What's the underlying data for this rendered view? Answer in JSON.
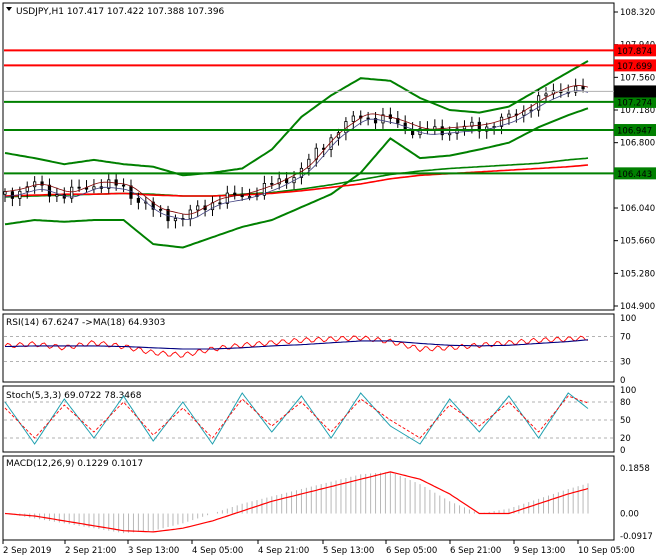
{
  "chart_data": [
    {
      "type": "line",
      "panel": "price",
      "header": "USDJPY,H1  107.417 107.422 107.388 107.396",
      "ylim": [
        104.9,
        108.32
      ],
      "y_ticks": [
        "108.320",
        "107.940",
        "107.560",
        "107.180",
        "106.800",
        "106.420",
        "106.040",
        "105.660",
        "105.280",
        "104.900"
      ],
      "x_labels": [
        "2 Sep 2019",
        "2 Sep 21:00",
        "3 Sep 13:00",
        "4 Sep 05:00",
        "4 Sep 21:00",
        "5 Sep 13:00",
        "6 Sep 05:00",
        "6 Sep 21:00",
        "9 Sep 13:00",
        "10 Sep 05:00"
      ],
      "current_price": {
        "value": 107.396,
        "label": "107.396"
      },
      "levels": [
        {
          "value": 107.874,
          "label": "107.874",
          "color": "#ff0000"
        },
        {
          "value": 107.699,
          "label": "107.699",
          "color": "#ff0000"
        },
        {
          "value": 107.274,
          "label": "107.274",
          "color": "#008000"
        },
        {
          "value": 106.947,
          "label": "106.947",
          "color": "#008000"
        },
        {
          "value": 106.443,
          "label": "106.443",
          "color": "#008000"
        }
      ],
      "price_series": {
        "x_index": [
          0,
          12,
          24,
          36,
          48,
          60,
          72,
          84,
          96,
          108,
          120,
          132,
          144,
          156,
          168,
          180,
          192,
          204,
          216,
          228,
          236
        ],
        "close": [
          106.2,
          106.3,
          106.18,
          106.32,
          106.28,
          106.0,
          105.92,
          106.12,
          106.18,
          106.3,
          106.48,
          106.88,
          107.12,
          107.05,
          106.92,
          106.95,
          106.98,
          107.08,
          107.3,
          107.45,
          107.396
        ]
      },
      "bollinger": {
        "upper": [
          106.68,
          106.62,
          106.55,
          106.6,
          106.55,
          106.52,
          106.42,
          106.45,
          106.5,
          106.72,
          107.1,
          107.35,
          107.55,
          107.52,
          107.32,
          107.18,
          107.15,
          107.22,
          107.42,
          107.62,
          107.75
        ],
        "lower": [
          105.85,
          105.9,
          105.88,
          105.9,
          105.9,
          105.62,
          105.58,
          105.7,
          105.82,
          105.9,
          106.05,
          106.2,
          106.45,
          106.85,
          106.62,
          106.65,
          106.72,
          106.8,
          106.98,
          107.12,
          107.2
        ]
      },
      "ma_long": {
        "color": "#ff0000",
        "values": [
          106.18,
          106.19,
          106.2,
          106.2,
          106.21,
          106.19,
          106.18,
          106.18,
          106.19,
          106.21,
          106.24,
          106.28,
          106.32,
          106.38,
          106.42,
          106.44,
          106.46,
          106.48,
          106.5,
          106.52,
          106.54
        ]
      },
      "ma_mid": {
        "color": "#008000",
        "values": [
          106.17,
          106.18,
          106.19,
          106.2,
          106.21,
          106.2,
          106.18,
          106.18,
          106.2,
          106.22,
          106.26,
          106.31,
          106.37,
          106.43,
          106.47,
          106.5,
          106.52,
          106.54,
          106.56,
          106.6,
          106.62
        ]
      }
    },
    {
      "type": "line",
      "panel": "rsi",
      "header": "RSI(14) 67.6247  ->MA(18) 64.9303",
      "ylim": [
        0,
        100
      ],
      "y_ticks": [
        "100",
        "70",
        "30",
        "0"
      ],
      "rsi": [
        55,
        58,
        52,
        60,
        54,
        44,
        40,
        50,
        56,
        60,
        64,
        66,
        68,
        62,
        50,
        52,
        56,
        60,
        64,
        66,
        67.6
      ],
      "ma": [
        54,
        55,
        55,
        55,
        54,
        52,
        50,
        50,
        52,
        55,
        57,
        60,
        63,
        63,
        59,
        56,
        55,
        56,
        59,
        62,
        64.9
      ]
    },
    {
      "type": "line",
      "panel": "stoch",
      "header": "Stoch(5,3,3) 69.0722 78.3468",
      "ylim": [
        0,
        100
      ],
      "y_ticks": [
        "100",
        "80",
        "50",
        "20",
        "0"
      ],
      "k": [
        80,
        10,
        85,
        20,
        90,
        15,
        80,
        10,
        95,
        30,
        90,
        20,
        95,
        40,
        10,
        85,
        30,
        90,
        20,
        95,
        69.1
      ],
      "d": [
        70,
        20,
        75,
        30,
        80,
        25,
        70,
        20,
        85,
        40,
        80,
        30,
        85,
        50,
        20,
        75,
        40,
        80,
        30,
        90,
        78.3
      ]
    },
    {
      "type": "bar",
      "panel": "macd",
      "header": "MACD(12,26,9) 0.1229 0.1017",
      "ylim": [
        -0.0917,
        0.1858
      ],
      "y_ticks": [
        "0.1858",
        "0.00",
        "-0.0917"
      ],
      "histogram": [
        0.0,
        -0.02,
        -0.04,
        -0.06,
        -0.08,
        -0.07,
        -0.04,
        0.0,
        0.04,
        0.07,
        0.1,
        0.13,
        0.16,
        0.17,
        0.12,
        0.05,
        0.0,
        0.02,
        0.06,
        0.1,
        0.123
      ],
      "signal": [
        0.0,
        -0.01,
        -0.03,
        -0.05,
        -0.07,
        -0.075,
        -0.06,
        -0.03,
        0.01,
        0.05,
        0.08,
        0.11,
        0.14,
        0.17,
        0.14,
        0.08,
        0.0,
        0.0,
        0.04,
        0.08,
        0.1017
      ]
    }
  ]
}
